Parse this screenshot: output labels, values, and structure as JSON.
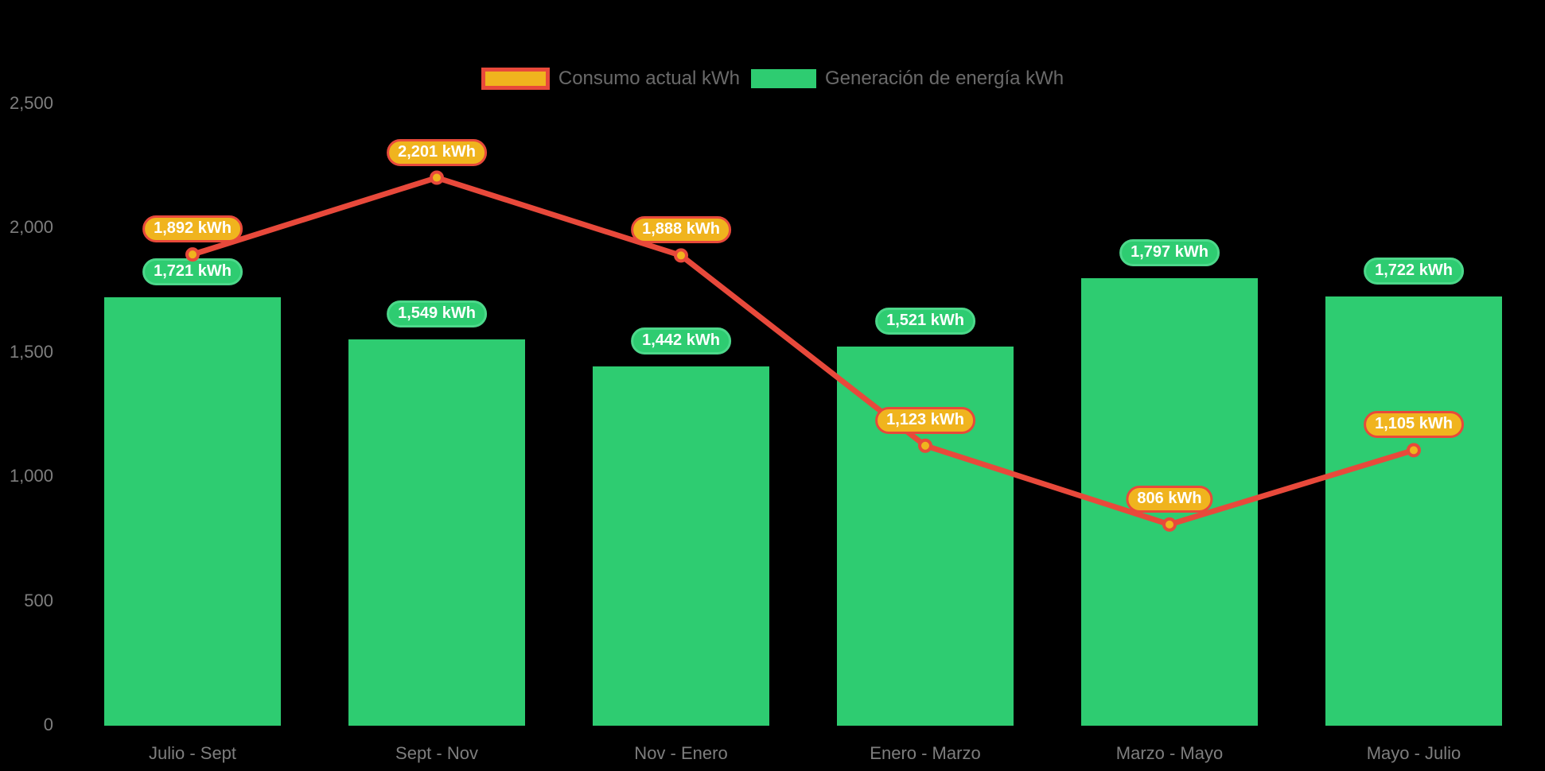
{
  "chart_data": {
    "type": "combo",
    "title": "",
    "categories": [
      "Julio - Sept",
      "Sept - Nov",
      "Nov - Enero",
      "Enero - Marzo",
      "Marzo - Mayo",
      "Mayo - Julio"
    ],
    "series": [
      {
        "name": "Consumo actual kWh",
        "type": "line",
        "color": "#e8493b",
        "marker_fill": "#f0b41e",
        "label_fill": "#f0b41e",
        "label_border": "#e8493b",
        "values": [
          1892,
          2201,
          1888,
          1123,
          806,
          1105
        ],
        "labels": [
          "1,892 kWh",
          "2,201 kWh",
          "1,888 kWh",
          "1,123 kWh",
          "806 kWh",
          "1,105 kWh"
        ]
      },
      {
        "name": "Generación de energía kWh",
        "type": "bar",
        "color": "#2ecc71",
        "label_fill": "#2ecc71",
        "label_border": "#4cd88a",
        "values": [
          1721,
          1549,
          1442,
          1521,
          1797,
          1722
        ],
        "labels": [
          "1,721 kWh",
          "1,549 kWh",
          "1,442 kWh",
          "1,521 kWh",
          "1,797 kWh",
          "1,722 kWh"
        ]
      }
    ],
    "yaxis": {
      "ticks": [
        0,
        500,
        1000,
        1500,
        2000,
        2500
      ],
      "tick_labels": [
        "0",
        "500",
        "1,000",
        "1,500",
        "2,000",
        "2,500"
      ],
      "lim": [
        0,
        2500
      ]
    },
    "xlabel": "",
    "ylabel": "",
    "legend_position": "top",
    "grid": false,
    "background": "#000000",
    "value_label_text_color": "#ffffff",
    "axis_text_color": "#7e7e7e",
    "legend_text_color": "#6a6a6a"
  }
}
